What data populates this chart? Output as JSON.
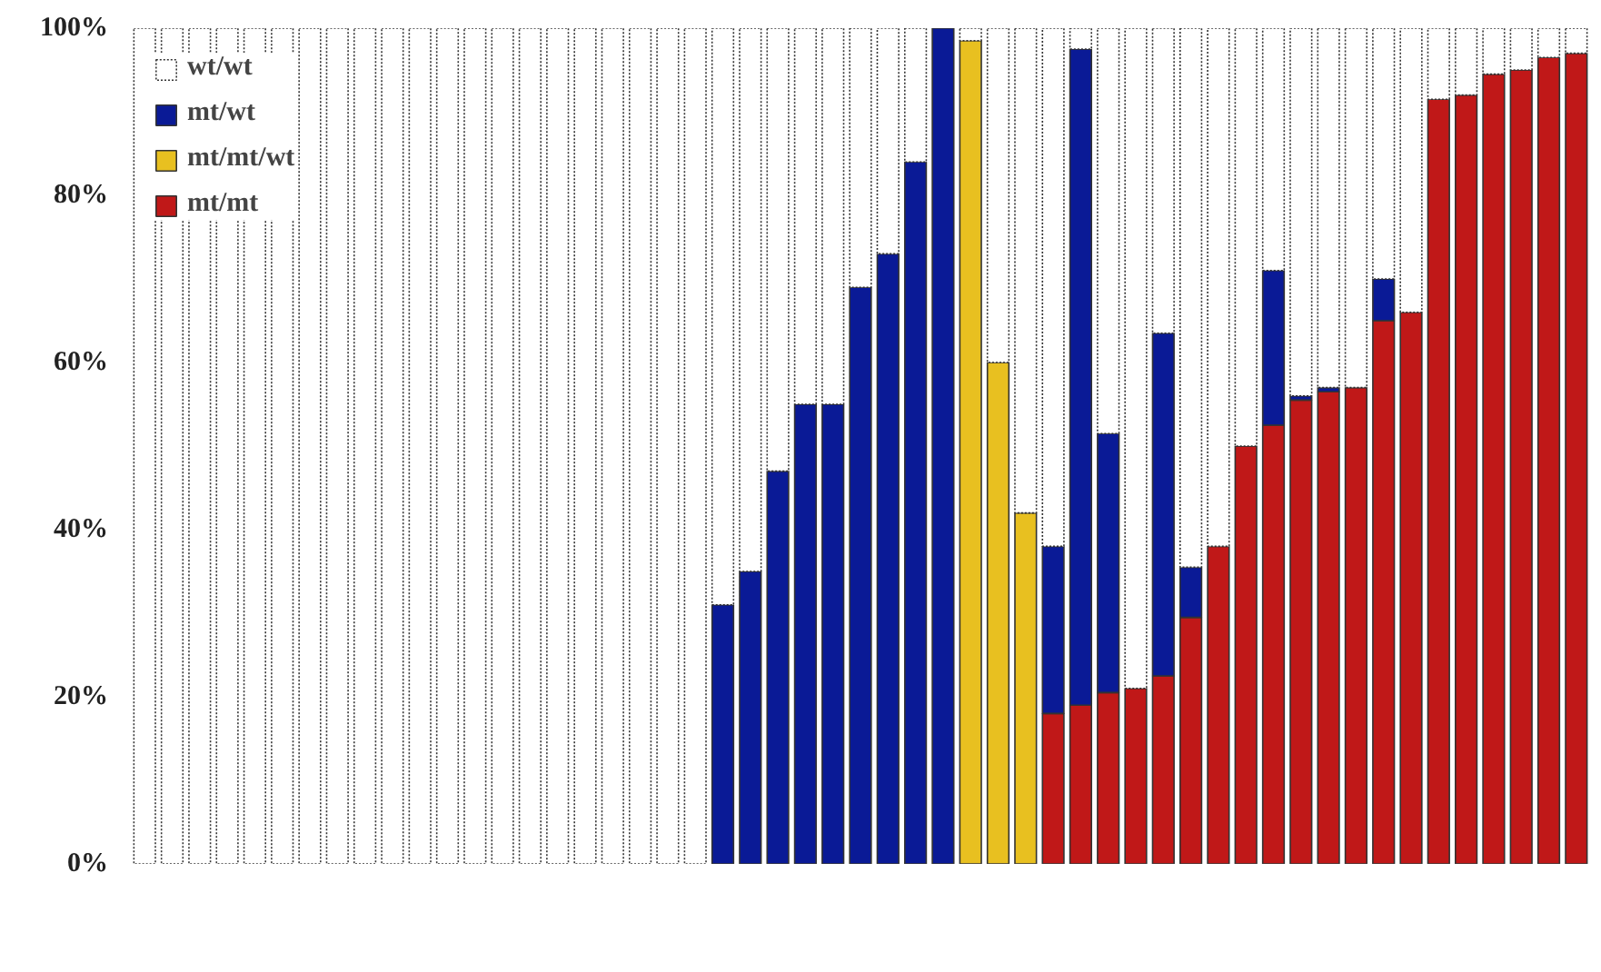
{
  "chart_data": {
    "type": "bar",
    "stacked": true,
    "categories": [
      null,
      null,
      null,
      null,
      null,
      null,
      null,
      null,
      null,
      null,
      null,
      null,
      null,
      null,
      null,
      null,
      null,
      null,
      null,
      null,
      null,
      null,
      null,
      null,
      null,
      null,
      null,
      null,
      null,
      null,
      null,
      null,
      null,
      null,
      null,
      null,
      null,
      null,
      null,
      null,
      null,
      null,
      null,
      null,
      null,
      null,
      null,
      null,
      null,
      null,
      null,
      null,
      null
    ],
    "series": [
      {
        "name": "mt/mt",
        "color": "#c01818",
        "values": [
          0,
          0,
          0,
          0,
          0,
          0,
          0,
          0,
          0,
          0,
          0,
          0,
          0,
          0,
          0,
          0,
          0,
          0,
          0,
          0,
          0,
          0,
          0,
          0,
          0,
          0,
          0,
          0,
          0,
          0,
          0,
          0,
          0,
          18,
          19,
          20.5,
          21,
          22.5,
          29.5,
          38,
          50,
          52.5,
          55.5,
          56.5,
          57,
          65,
          66,
          91.5,
          92,
          94.5,
          95,
          96.5,
          97
        ]
      },
      {
        "name": "mt/mt/wt",
        "color": "#e8c020",
        "values": [
          0,
          0,
          0,
          0,
          0,
          0,
          0,
          0,
          0,
          0,
          0,
          0,
          0,
          0,
          0,
          0,
          0,
          0,
          0,
          0,
          0,
          0,
          0,
          0,
          0,
          0,
          0,
          0,
          0,
          0,
          98.5,
          60,
          42,
          0,
          0,
          0,
          0,
          0,
          0,
          0,
          0,
          0,
          0,
          0,
          0,
          0,
          0,
          0,
          0,
          0,
          0,
          0,
          0
        ]
      },
      {
        "name": "mt/wt",
        "color": "#0a1a96",
        "values": [
          0,
          0,
          0,
          0,
          0,
          0,
          0,
          0,
          0,
          0,
          0,
          0,
          0,
          0,
          0,
          0,
          0,
          0,
          0,
          0,
          0,
          31,
          35,
          47,
          55,
          55,
          69,
          73,
          84,
          100,
          0,
          0,
          0,
          20,
          78.5,
          31,
          0,
          41,
          6,
          0,
          0,
          18.5,
          0.5,
          0.5,
          0,
          5,
          0,
          0,
          0,
          0,
          0,
          0,
          0
        ]
      },
      {
        "name": "wt/wt",
        "color": "#ffffff",
        "values": [
          100,
          100,
          100,
          100,
          100,
          100,
          100,
          100,
          100,
          100,
          100,
          100,
          100,
          100,
          100,
          100,
          100,
          100,
          100,
          100,
          100,
          69,
          65,
          53,
          45,
          45,
          31,
          27,
          16,
          0,
          1.5,
          40,
          58,
          62,
          2.5,
          48.5,
          79,
          36.5,
          64.5,
          62,
          50,
          29,
          44,
          43,
          43,
          30,
          34,
          8.5,
          8,
          5.5,
          5,
          3.5,
          3
        ]
      }
    ],
    "ylim": [
      0,
      100
    ],
    "yticks": [
      {
        "value": 0,
        "label": "0%"
      },
      {
        "value": 20,
        "label": "20%"
      },
      {
        "value": 40,
        "label": "40%"
      },
      {
        "value": 60,
        "label": "60%"
      },
      {
        "value": 80,
        "label": "80%"
      },
      {
        "value": 100,
        "label": "100%"
      }
    ],
    "tick_labels": "y",
    "grid": false,
    "legend": "top left"
  }
}
